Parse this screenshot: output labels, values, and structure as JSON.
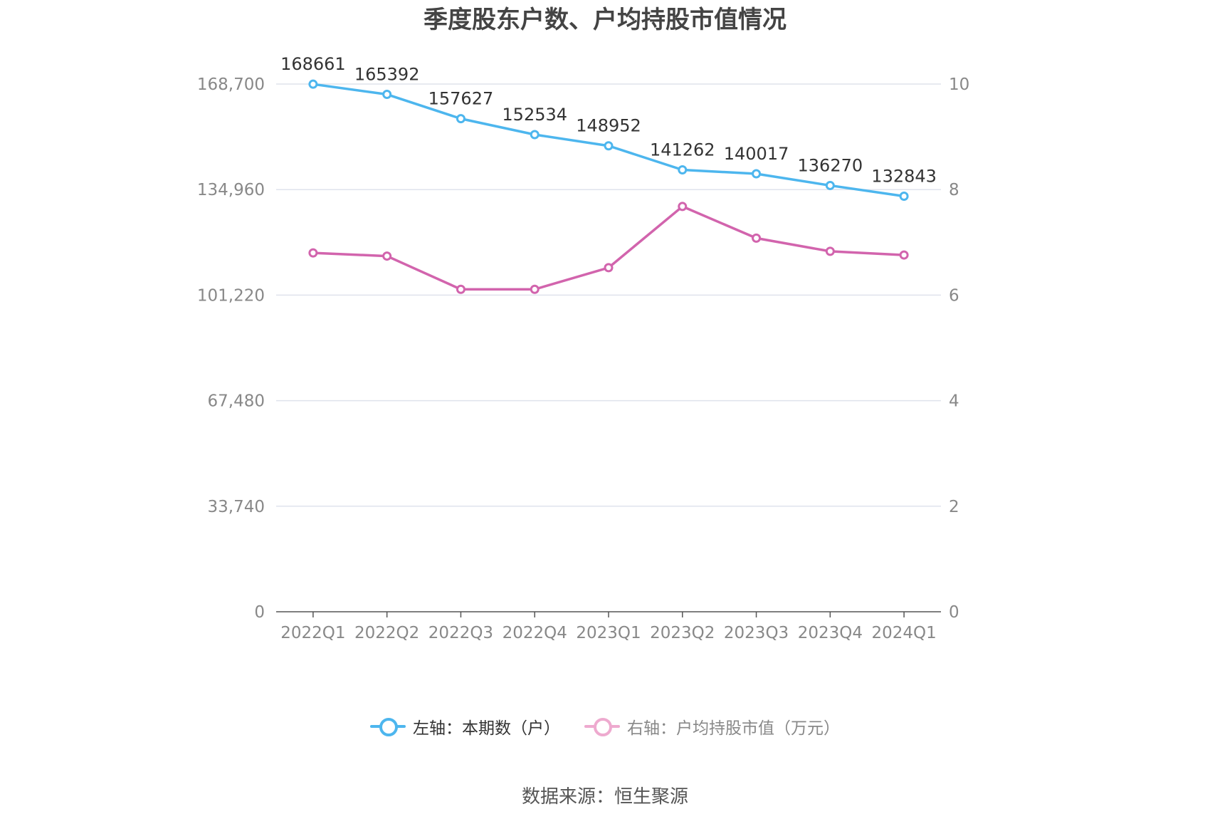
{
  "title": "季度股东户数、户均持股市值情况",
  "source": "数据来源：恒生聚源",
  "legend": {
    "left_label": "左轴：本期数（户）",
    "right_label": "右轴：户均持股市值（万元）"
  },
  "colors": {
    "left_series": "#4db6ee",
    "right_series": "#d264ad",
    "right_legend": "#eeaacf",
    "grid": "#dfe3ec",
    "axis": "#555555",
    "tick_text": "#888888",
    "label_text": "#333333"
  },
  "chart_data": {
    "type": "line",
    "title": "季度股东户数、户均持股市值情况",
    "categories": [
      "2022Q1",
      "2022Q2",
      "2022Q3",
      "2022Q4",
      "2023Q1",
      "2023Q2",
      "2023Q3",
      "2023Q4",
      "2024Q1"
    ],
    "left_axis": {
      "ylim": [
        0,
        168700
      ],
      "ticks": [
        0,
        33740,
        67480,
        101220,
        134960,
        168700
      ],
      "tick_labels": [
        "0",
        "33,740",
        "67,480",
        "101,220",
        "134,960",
        "168,700"
      ]
    },
    "right_axis": {
      "ylim": [
        0,
        10
      ],
      "ticks": [
        0,
        2,
        4,
        6,
        8,
        10
      ],
      "tick_labels": [
        "0",
        "2",
        "4",
        "6",
        "8",
        "10"
      ]
    },
    "series": [
      {
        "name": "左轴：本期数（户）",
        "axis": "left",
        "values": [
          168661,
          165392,
          157627,
          152534,
          148952,
          141262,
          140017,
          136270,
          132843
        ],
        "data_labels": [
          "168661",
          "165392",
          "157627",
          "152534",
          "148952",
          "141262",
          "140017",
          "136270",
          "132843"
        ]
      },
      {
        "name": "右轴：户均持股市值（万元）",
        "axis": "right",
        "values": [
          6.8,
          6.74,
          6.11,
          6.11,
          6.52,
          7.68,
          7.08,
          6.83,
          6.76
        ]
      }
    ],
    "grid": true,
    "legend_position": "bottom"
  }
}
